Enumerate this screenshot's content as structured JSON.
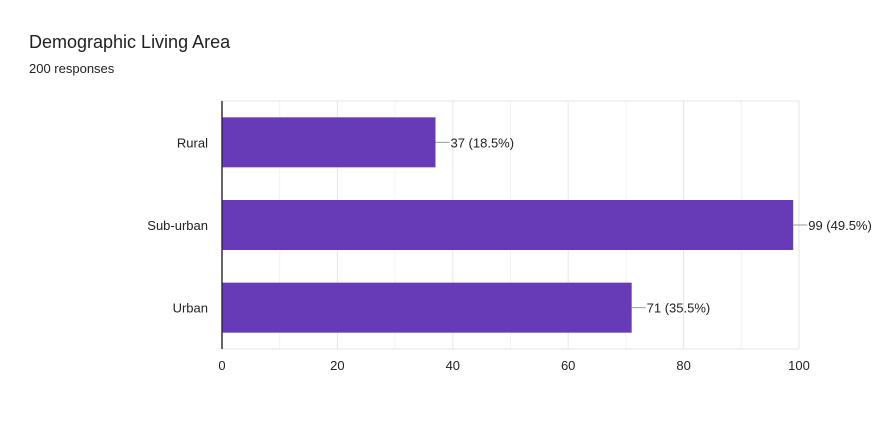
{
  "header": {
    "title": "Demographic Living Area",
    "responses": "200 responses"
  },
  "chart_data": {
    "type": "bar",
    "orientation": "horizontal",
    "categories": [
      "Rural",
      "Sub-urban",
      "Urban"
    ],
    "values": [
      37,
      99,
      71
    ],
    "data_labels": [
      "37 (18.5%)",
      "99 (49.5%)",
      "71 (35.5%)"
    ],
    "xlim": [
      0,
      100
    ],
    "xticks": [
      "0",
      "20",
      "40",
      "60",
      "80",
      "100"
    ],
    "grid": true,
    "bar_color": "#673ab7"
  }
}
